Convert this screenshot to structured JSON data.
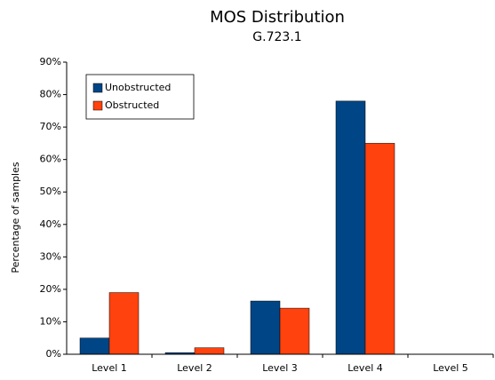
{
  "chart_data": {
    "type": "bar",
    "title": "MOS Distribution",
    "subtitle": "G.723.1",
    "y_label": "Percentage of samples",
    "categories": [
      "Level 1",
      "Level 2",
      "Level 3",
      "Level 4",
      "Level 5"
    ],
    "series": [
      {
        "name": "Unobstructed",
        "color": "#004586",
        "values": [
          5,
          0.5,
          16.4,
          78,
          0
        ]
      },
      {
        "name": "Obstructed",
        "color": "#ff420e",
        "values": [
          19,
          2,
          14.2,
          65,
          0
        ]
      }
    ],
    "ylim": [
      0,
      90
    ],
    "yticks": [
      {
        "value": 0,
        "label": "0%"
      },
      {
        "value": 10,
        "label": "10%"
      },
      {
        "value": 20,
        "label": "20%"
      },
      {
        "value": 30,
        "label": "30%"
      },
      {
        "value": 40,
        "label": "40%"
      },
      {
        "value": 50,
        "label": "50%"
      },
      {
        "value": 60,
        "label": "60%"
      },
      {
        "value": 70,
        "label": "70%"
      },
      {
        "value": 80,
        "label": "80%"
      },
      {
        "value": 90,
        "label": "90%"
      }
    ],
    "grid": false,
    "legend": "top-left"
  }
}
